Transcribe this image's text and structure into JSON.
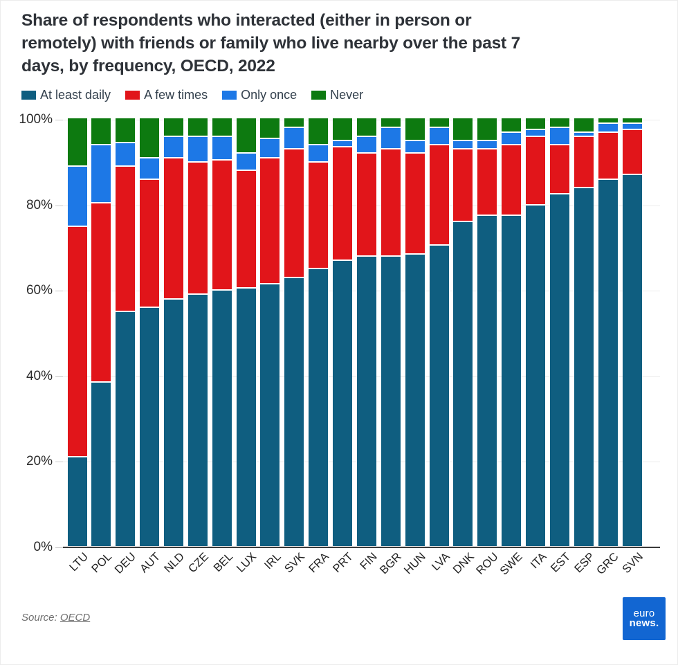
{
  "title": {
    "lines": [
      "Share of respondents who interacted (either in person or",
      "remotely) with friends or family who live nearby over the past 7",
      "days, by frequency, OECD, 2022"
    ]
  },
  "source": {
    "prefix": "Source: ",
    "link_text": "OECD"
  },
  "logo": {
    "line1": "euro",
    "line2": "news."
  },
  "chart_data": {
    "type": "bar",
    "stacked": true,
    "unit": "%",
    "title": "Share of respondents who interacted (either in person or remotely) with friends or family who live nearby over the past 7 days, by frequency, OECD, 2022",
    "legend_position": "top",
    "grid": true,
    "ylim": [
      0,
      100
    ],
    "yticks": [
      {
        "value": 0,
        "label": "0%"
      },
      {
        "value": 20,
        "label": "20%"
      },
      {
        "value": 40,
        "label": "40%"
      },
      {
        "value": 60,
        "label": "60%"
      },
      {
        "value": 80,
        "label": "80%"
      },
      {
        "value": 100,
        "label": "100%"
      }
    ],
    "categories": [
      "LTU",
      "POL",
      "DEU",
      "AUT",
      "NLD",
      "CZE",
      "BEL",
      "LUX",
      "IRL",
      "SVK",
      "FRA",
      "PRT",
      "FIN",
      "BGR",
      "HUN",
      "LVA",
      "DNK",
      "ROU",
      "SWE",
      "ITA",
      "EST",
      "ESP",
      "GRC",
      "SVN"
    ],
    "series": [
      {
        "name": "At least daily",
        "color": "#0f5e80",
        "values": [
          21,
          38.5,
          55,
          56,
          58,
          59,
          60,
          60.5,
          61.5,
          63,
          65,
          67,
          68,
          68,
          68.5,
          70.5,
          76,
          77.5,
          77.5,
          80,
          82.5,
          84,
          86,
          87
        ]
      },
      {
        "name": "A few times",
        "color": "#e1151a",
        "values": [
          54,
          42,
          34,
          30,
          33,
          31,
          30.5,
          27.5,
          29.5,
          30,
          25,
          26.5,
          24,
          25,
          23.5,
          23.5,
          17,
          15.5,
          16.5,
          16,
          11.5,
          12,
          11,
          10.5
        ]
      },
      {
        "name": "Only once",
        "color": "#1d78e6",
        "values": [
          14,
          13.5,
          5.5,
          5,
          5,
          6,
          5.5,
          4,
          4.5,
          5,
          4,
          1.5,
          4,
          5,
          3,
          4,
          2,
          2,
          3,
          1.5,
          4,
          1,
          2,
          1.5
        ]
      },
      {
        "name": "Never",
        "color": "#0d7a10",
        "values": [
          11,
          6,
          5.5,
          9,
          4,
          4,
          4,
          8,
          4.5,
          2,
          6,
          5,
          4,
          2,
          5,
          2,
          5,
          5,
          3,
          2.5,
          2,
          3,
          1,
          1
        ]
      }
    ]
  }
}
